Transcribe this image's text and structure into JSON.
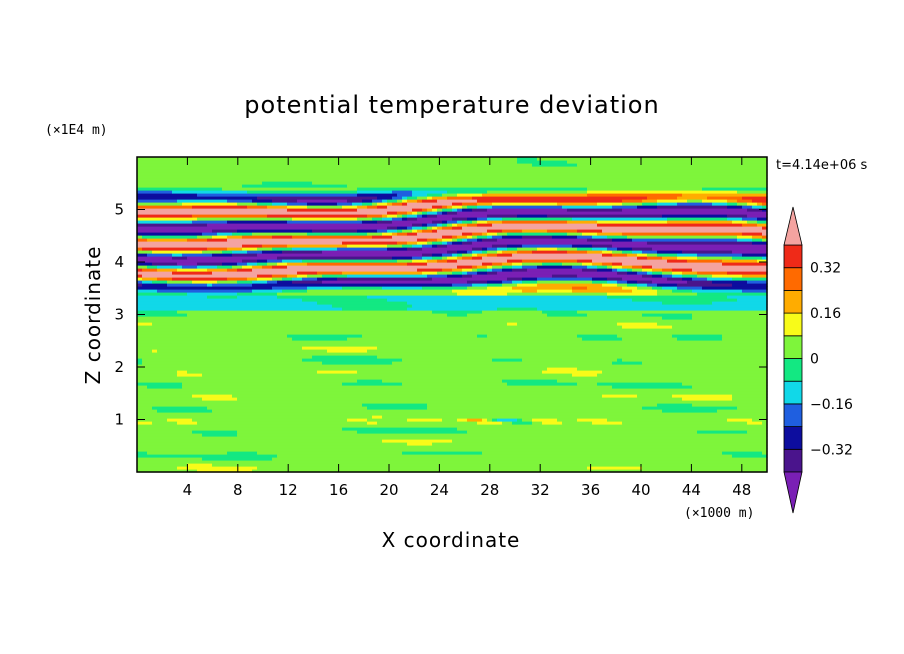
{
  "chart_data": {
    "type": "heatmap",
    "title": "potential temperature deviation",
    "xlabel": "X coordinate",
    "ylabel": "Z coordinate",
    "x_unit": "(×1000 m)",
    "y_unit": "(×1E4 m)",
    "time_label": "t=4.14e+06 s",
    "xlim": [
      0,
      50
    ],
    "ylim": [
      0,
      6
    ],
    "x_ticks": [
      4,
      8,
      12,
      16,
      20,
      24,
      28,
      32,
      36,
      40,
      44,
      48
    ],
    "y_ticks": [
      1,
      2,
      3,
      4,
      5
    ],
    "grid": false,
    "colorbar": {
      "placement": "right",
      "levels": [
        -0.48,
        -0.4,
        -0.32,
        -0.24,
        -0.16,
        -0.08,
        0,
        0.08,
        0.16,
        0.24,
        0.32,
        0.4
      ],
      "colors": [
        "#7a1fb5",
        "#4a148c",
        "#0d0d9e",
        "#1f5fe0",
        "#11d8e8",
        "#13e882",
        "#7ef53b",
        "#f8fb19",
        "#ffac00",
        "#ff6a00",
        "#ef2a18",
        "#f4a3a0"
      ],
      "labels": [
        {
          "value": 0.32,
          "text": "0.32"
        },
        {
          "value": 0.16,
          "text": "0.16"
        },
        {
          "value": 0,
          "text": "0"
        },
        {
          "value": -0.16,
          "text": "−0.16"
        },
        {
          "value": -0.32,
          "text": "−0.32"
        }
      ],
      "extend": "both"
    },
    "bands": [
      {
        "z": [
          0,
          3.1
        ],
        "value": 0.02,
        "pattern": "mixed green, weak horizontal streaks"
      },
      {
        "z": [
          3.1,
          3.35
        ],
        "value": -0.1,
        "pattern": "cyan layer"
      },
      {
        "z": [
          3.35,
          5.4
        ],
        "value": 0.4,
        "pattern": "alternating strong positive / negative layers (±0.4)"
      },
      {
        "z": [
          5.4,
          6.0
        ],
        "value": 0.0,
        "pattern": "mostly green"
      }
    ]
  }
}
